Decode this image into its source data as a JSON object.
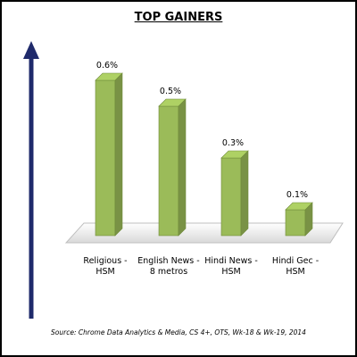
{
  "chart_data": {
    "type": "bar3d",
    "title": "TOP GAINERS",
    "categories": [
      "Religious -\nHSM",
      "English News -\n8 metros",
      "Hindi News -\nHSM",
      "Hindi Gec -\nHSM"
    ],
    "values": [
      0.6,
      0.5,
      0.3,
      0.1
    ],
    "value_labels": [
      "0.6%",
      "0.5%",
      "0.3%",
      "0.1%"
    ],
    "color": "#9bbb59",
    "source": "Source: Chrome Data Analytics & Media, CS 4+,  OTS, Wk-18 & Wk-19, 2014"
  }
}
